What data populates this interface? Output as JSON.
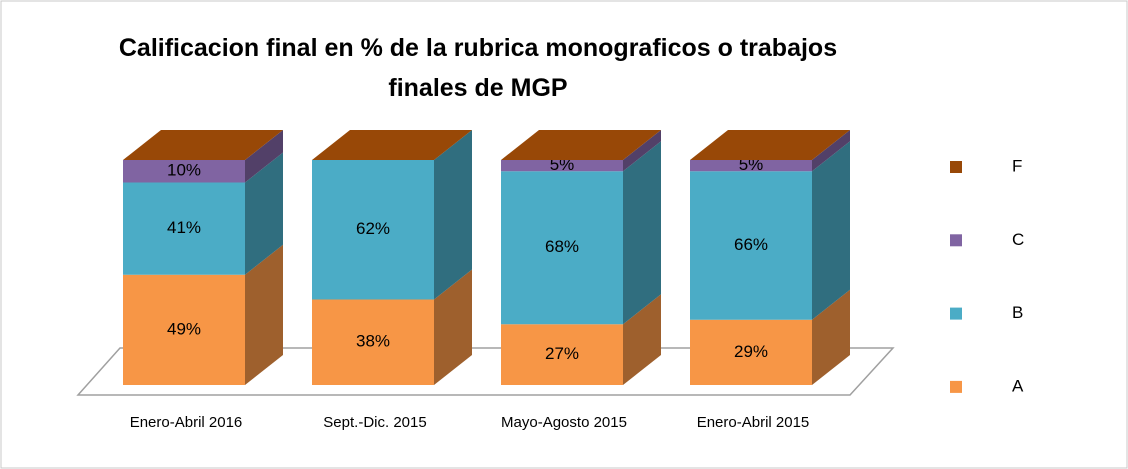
{
  "chart_data": {
    "type": "bar3d_stacked",
    "title": "Calificacion final en % de la rubrica monograficos o trabajos finales de MGP",
    "categories": [
      "Enero-Abril 2016",
      "Sept.-Dic. 2015",
      "Mayo-Agosto 2015",
      "Enero-Abril 2015"
    ],
    "series": [
      {
        "name": "A",
        "color": "#f79646",
        "values": [
          49,
          38,
          27,
          29
        ],
        "value_labels": [
          "49%",
          "38%",
          "27%",
          "29%"
        ]
      },
      {
        "name": "B",
        "color": "#4bacc6",
        "values": [
          41,
          62,
          68,
          66
        ],
        "value_labels": [
          "41%",
          "62%",
          "68%",
          "66%"
        ]
      },
      {
        "name": "C",
        "color": "#8064a2",
        "values": [
          10,
          0,
          5,
          5
        ],
        "value_labels": [
          "10%",
          null,
          "5%",
          "5%"
        ]
      },
      {
        "name": "F",
        "color": "#984807",
        "values": [
          0,
          0,
          0,
          0
        ]
      }
    ],
    "ylim": [
      0,
      100
    ],
    "legend": "right"
  }
}
